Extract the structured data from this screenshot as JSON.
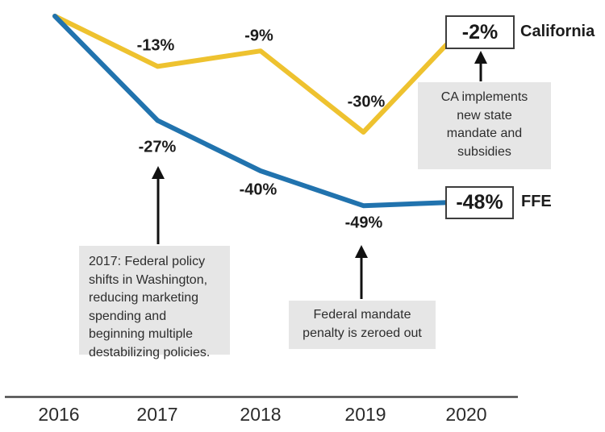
{
  "chart_data": {
    "type": "line",
    "title": "",
    "x": [
      2016,
      2017,
      2018,
      2019,
      2020
    ],
    "x_tick_labels": [
      "2016",
      "2017",
      "2018",
      "2019",
      "2020"
    ],
    "unit": "percent change vs 2016",
    "grid": false,
    "series": [
      {
        "name": "California",
        "color": "#EEC22F",
        "values": [
          0,
          -13,
          -9,
          -30,
          -2
        ]
      },
      {
        "name": "FFE",
        "color": "#2173AE",
        "values": [
          0,
          -27,
          -40,
          -49,
          -48
        ]
      }
    ],
    "annotations": [
      {
        "target": "FFE 2017",
        "text": "2017: Federal policy shifts in Washington, reducing marketing spending and beginning multiple destabilizing policies."
      },
      {
        "target": "FFE 2019",
        "text": "Federal mandate penalty is zeroed out"
      },
      {
        "target": "California 2020",
        "text": "CA implements new state mandate and subsidies"
      }
    ],
    "end_labels": [
      {
        "series": "California",
        "value": "-2%"
      },
      {
        "series": "FFE",
        "value": "-48%"
      }
    ]
  },
  "labels": {
    "ca_2017": "-13%",
    "ca_2018": "-9%",
    "ca_2019": "-30%",
    "ca_2020": "-2%",
    "ffe_2017": "-27%",
    "ffe_2018": "-40%",
    "ffe_2019": "-49%",
    "ffe_2020": "-48%",
    "california": "California",
    "ffe": "FFE"
  },
  "annotations": {
    "policy_2017": "2017: Federal policy\nshifts in Washington,\nreducing marketing\nspending and\nbeginning multiple\ndestabilizing policies.",
    "mandate_2019": "Federal mandate\npenalty is zeroed out",
    "ca_mandate": "CA implements\nnew state\nmandate and\nsubsidies"
  },
  "axis": {
    "years": [
      "2016",
      "2017",
      "2018",
      "2019",
      "2020"
    ]
  },
  "colors": {
    "california_line": "#EEC22F",
    "ffe_line": "#2173AE",
    "annotation_bg": "#E6E6E6",
    "box_border": "#3D3D3D",
    "axis_line": "#4A4A4A",
    "arrow": "#111111",
    "text": "#1C1C1C"
  }
}
